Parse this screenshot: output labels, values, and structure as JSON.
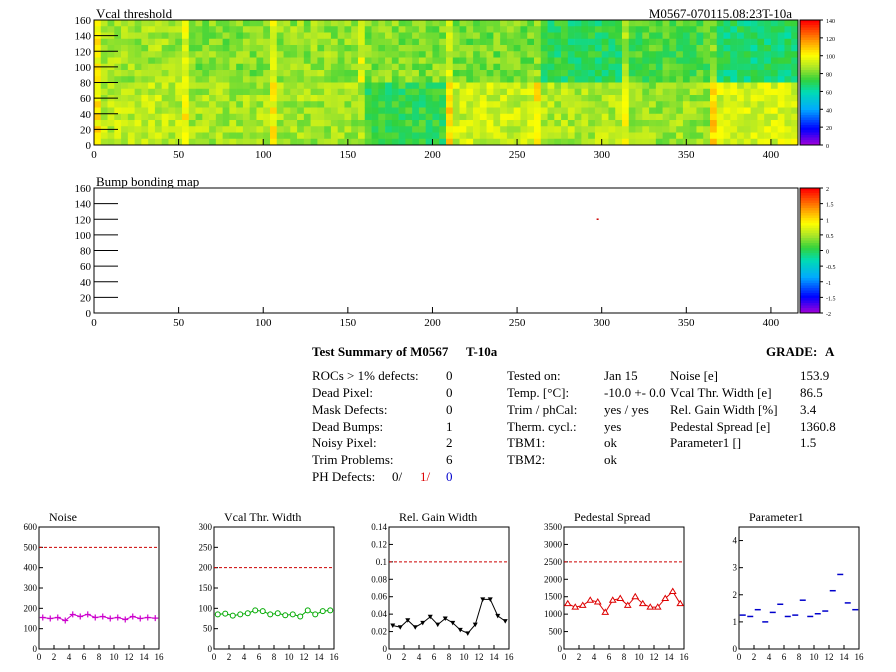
{
  "map1": {
    "title": "Vcal threshold",
    "module_id": "M0567-070115.08:23T-10a",
    "palette_ticks": [
      "140",
      "120",
      "100",
      "80",
      "60",
      "40",
      "20",
      "0"
    ]
  },
  "map2": {
    "title": "Bump bonding map",
    "palette_ticks": [
      "2",
      "1.5",
      "1",
      "0.5",
      "0",
      "-0.5",
      "-1",
      "-1.5",
      "-2"
    ]
  },
  "summary": {
    "title": "Test Summary of M0567",
    "temp_tag": "T-10a",
    "grade_label": "GRADE:",
    "grade": "A",
    "col1": [
      {
        "label": "ROCs > 1% defects:",
        "value": "0"
      },
      {
        "label": "Dead Pixel:",
        "value": "0"
      },
      {
        "label": "Mask Defects:",
        "value": "0"
      },
      {
        "label": "Dead Bumps:",
        "value": "1"
      },
      {
        "label": "Noisy Pixel:",
        "value": "2"
      },
      {
        "label": "Trim Problems:",
        "value": "6"
      }
    ],
    "ph_label": "PH Defects:",
    "ph_values": [
      "0/",
      "1/",
      "0"
    ],
    "col2": [
      {
        "label": "Tested on:",
        "value": "Jan 15"
      },
      {
        "label": "Temp. [°C]:",
        "value": "-10.0 +- 0.0"
      },
      {
        "label": "Trim / phCal:",
        "value": "yes / yes"
      },
      {
        "label": "Therm. cycl.:",
        "value": "yes"
      },
      {
        "label": "TBM1:",
        "value": "ok"
      },
      {
        "label": "TBM2:",
        "value": "ok"
      }
    ],
    "col3": [
      {
        "label": "Noise [e]",
        "value": "153.9"
      },
      {
        "label": "Vcal Thr. Width [e]",
        "value": "86.5"
      },
      {
        "label": "Rel. Gain Width [%]",
        "value": "3.4"
      },
      {
        "label": "Pedestal Spread [e]",
        "value": "1360.8"
      },
      {
        "label": "Parameter1 []",
        "value": "1.5"
      }
    ]
  },
  "colors": {
    "noise": "#cc00cc",
    "vcal": "#00aa00",
    "gain": "#000000",
    "pedestal": "#dd0000",
    "param": "#0000cc",
    "limit": "#cc0000",
    "ph_red": "#dd0000",
    "ph_blue": "#0000cc"
  },
  "chart_data": [
    {
      "type": "heatmap",
      "title": "Vcal threshold",
      "x_ticks": [
        "0",
        "50",
        "100",
        "150",
        "200",
        "250",
        "300",
        "350",
        "400"
      ],
      "y_ticks": [
        "0",
        "20",
        "40",
        "60",
        "80",
        "100",
        "120",
        "140",
        "160"
      ],
      "xlim": [
        0,
        416
      ],
      "ylim": [
        0,
        160
      ],
      "zlim": [
        0,
        140
      ],
      "roc_mean_levels": [
        [
          86,
          82,
          84,
          82,
          80,
          70,
          75,
          67
        ],
        [
          90,
          87,
          86,
          72,
          92,
          88,
          85,
          94
        ]
      ]
    },
    {
      "type": "heatmap",
      "title": "Bump bonding map",
      "x_ticks": [
        "0",
        "50",
        "100",
        "150",
        "200",
        "250",
        "300",
        "350",
        "400"
      ],
      "y_ticks": [
        "0",
        "20",
        "40",
        "60",
        "80",
        "100",
        "120",
        "140",
        "160"
      ],
      "xlim": [
        0,
        416
      ],
      "ylim": [
        0,
        160
      ],
      "zlim": [
        -2,
        2
      ],
      "points": [
        {
          "x": 297,
          "y": 121
        }
      ]
    },
    {
      "type": "line",
      "title": "Noise",
      "x": [
        0,
        1,
        2,
        3,
        4,
        5,
        6,
        7,
        8,
        9,
        10,
        11,
        12,
        13,
        14,
        15
      ],
      "values": [
        155,
        150,
        155,
        140,
        170,
        160,
        170,
        155,
        160,
        150,
        155,
        145,
        160,
        150,
        155,
        152
      ],
      "ylim": [
        0,
        600
      ],
      "xlim": [
        0,
        16
      ],
      "y_ticks": [
        "0",
        "100",
        "200",
        "300",
        "400",
        "500",
        "600"
      ],
      "x_ticks": [
        "0",
        "2",
        "4",
        "6",
        "8",
        "10",
        "12",
        "14",
        "16"
      ],
      "limit": 500,
      "marker": "cross"
    },
    {
      "type": "line",
      "title": "Vcal Thr. Width",
      "x": [
        0,
        1,
        2,
        3,
        4,
        5,
        6,
        7,
        8,
        9,
        10,
        11,
        12,
        13,
        14,
        15
      ],
      "values": [
        85,
        87,
        82,
        85,
        88,
        95,
        93,
        85,
        88,
        83,
        85,
        80,
        95,
        85,
        93,
        95
      ],
      "ylim": [
        0,
        300
      ],
      "xlim": [
        0,
        16
      ],
      "y_ticks": [
        "0",
        "50",
        "100",
        "150",
        "200",
        "250",
        "300"
      ],
      "x_ticks": [
        "0",
        "2",
        "4",
        "6",
        "8",
        "10",
        "12",
        "14",
        "16"
      ],
      "limit": 200,
      "marker": "circle"
    },
    {
      "type": "line",
      "title": "Rel. Gain Width",
      "x": [
        0,
        1,
        2,
        3,
        4,
        5,
        6,
        7,
        8,
        9,
        10,
        11,
        12,
        13,
        14,
        15
      ],
      "values": [
        0.027,
        0.025,
        0.033,
        0.025,
        0.03,
        0.037,
        0.028,
        0.035,
        0.03,
        0.022,
        0.018,
        0.028,
        0.057,
        0.057,
        0.038,
        0.032
      ],
      "ylim": [
        0,
        0.14
      ],
      "xlim": [
        0,
        16
      ],
      "y_ticks": [
        "0",
        "0.02",
        "0.04",
        "0.06",
        "0.08",
        "0.1",
        "0.12",
        "0.14"
      ],
      "x_ticks": [
        "0",
        "2",
        "4",
        "6",
        "8",
        "10",
        "12",
        "14",
        "16"
      ],
      "limit": 0.1,
      "marker": "triangle"
    },
    {
      "type": "line",
      "title": "Pedestal Spread",
      "x": [
        0,
        1,
        2,
        3,
        4,
        5,
        6,
        7,
        8,
        9,
        10,
        11,
        12,
        13,
        14,
        15
      ],
      "values": [
        1300,
        1200,
        1250,
        1400,
        1350,
        1050,
        1400,
        1450,
        1250,
        1500,
        1300,
        1200,
        1200,
        1450,
        1650,
        1300
      ],
      "ylim": [
        0,
        3500
      ],
      "xlim": [
        0,
        16
      ],
      "y_ticks": [
        "0",
        "500",
        "1000",
        "1500",
        "2000",
        "2500",
        "3000",
        "3500"
      ],
      "x_ticks": [
        "0",
        "2",
        "4",
        "6",
        "8",
        "10",
        "12",
        "14",
        "16"
      ],
      "limit": 2500,
      "marker": "triangle-open"
    },
    {
      "type": "scatter",
      "title": "Parameter1",
      "x": [
        0,
        1,
        2,
        3,
        4,
        5,
        6,
        7,
        8,
        9,
        10,
        11,
        12,
        13,
        14,
        15
      ],
      "values": [
        1.25,
        1.2,
        1.45,
        1.0,
        1.35,
        1.65,
        1.2,
        1.25,
        1.8,
        1.2,
        1.3,
        1.4,
        2.15,
        2.75,
        1.7,
        1.45
      ],
      "ylim": [
        0,
        4.5
      ],
      "xlim": [
        0,
        16
      ],
      "y_ticks": [
        "0",
        "1",
        "2",
        "3",
        "4"
      ],
      "x_ticks": [
        "0",
        "2",
        "4",
        "6",
        "8",
        "10",
        "12",
        "14",
        "16"
      ],
      "marker": "hbar"
    }
  ]
}
